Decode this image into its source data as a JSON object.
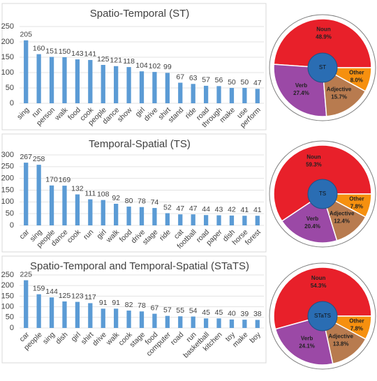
{
  "chart_data": [
    {
      "type": "bar",
      "title": "Spatio-Temporal (ST)",
      "color": "#5b9bd5",
      "grid": true,
      "categories": [
        "sing",
        "run",
        "person",
        "walk",
        "food",
        "cook",
        "people",
        "dance",
        "show",
        "girl",
        "drive",
        "shirt",
        "stand",
        "ride",
        "road",
        "through",
        "make",
        "use",
        "perform"
      ],
      "values": [
        205,
        160,
        151,
        150,
        143,
        141,
        125,
        121,
        118,
        104,
        102,
        99,
        67,
        63,
        57,
        56,
        50,
        50,
        47
      ],
      "ylim": [
        0,
        250
      ],
      "yticks": [
        0,
        50,
        100,
        150,
        200,
        250
      ]
    },
    {
      "type": "pie",
      "center_label": "ST",
      "categories": [
        "Noun",
        "Verb",
        "Adjective",
        "Other"
      ],
      "values": [
        48.9,
        27.4,
        15.7,
        8.0
      ],
      "value_labels": [
        "48.9%",
        "27.4%",
        "15.7%",
        "8.0%"
      ],
      "colors": [
        "#e8202a",
        "#9b49a6",
        "#b87b4f",
        "#f6900f"
      ]
    },
    {
      "type": "bar",
      "title": "Temporal-Spatial (TS)",
      "color": "#5b9bd5",
      "grid": true,
      "categories": [
        "car",
        "sing",
        "people",
        "dance",
        "cook",
        "run",
        "girl",
        "walk",
        "food",
        "drive",
        "stage",
        "ride",
        "cat",
        "football",
        "road",
        "paper",
        "dish",
        "horse",
        "forest"
      ],
      "values": [
        267,
        258,
        170,
        169,
        132,
        111,
        108,
        92,
        80,
        78,
        74,
        52,
        47,
        47,
        44,
        43,
        42,
        41,
        41
      ],
      "ylim": [
        0,
        300
      ],
      "yticks": [
        0,
        50,
        100,
        150,
        200,
        250,
        300
      ]
    },
    {
      "type": "pie",
      "center_label": "TS",
      "categories": [
        "Noun",
        "Verb",
        "Adjective",
        "Other"
      ],
      "values": [
        59.3,
        20.4,
        12.4,
        7.8
      ],
      "value_labels": [
        "59.3%",
        "20.4%",
        "12.4%",
        "7.8%"
      ],
      "colors": [
        "#e8202a",
        "#9b49a6",
        "#b87b4f",
        "#f6900f"
      ]
    },
    {
      "type": "bar",
      "title": "Spatio-Temporal and Temporal-Spatial (STaTS)",
      "color": "#5b9bd5",
      "grid": true,
      "categories": [
        "car",
        "people",
        "sing",
        "dish",
        "girl",
        "shirt",
        "drive",
        "walk",
        "cook",
        "stage",
        "food",
        "computer",
        "road",
        "run",
        "basketball",
        "kitchen",
        "toy",
        "make",
        "boy"
      ],
      "values": [
        225,
        159,
        144,
        125,
        123,
        117,
        91,
        91,
        82,
        78,
        67,
        57,
        55,
        54,
        45,
        45,
        40,
        39,
        38
      ],
      "ylim": [
        0,
        250
      ],
      "yticks": [
        0,
        50,
        100,
        150,
        200,
        250
      ]
    },
    {
      "type": "pie",
      "center_label": "STaTS",
      "categories": [
        "Noun",
        "Verb",
        "Adjective",
        "Other"
      ],
      "values": [
        54.3,
        24.1,
        13.8,
        7.8
      ],
      "value_labels": [
        "54.3%",
        "24.1%",
        "13.8%",
        "7.8%"
      ],
      "colors": [
        "#e8202a",
        "#9b49a6",
        "#b87b4f",
        "#f6900f"
      ]
    }
  ]
}
